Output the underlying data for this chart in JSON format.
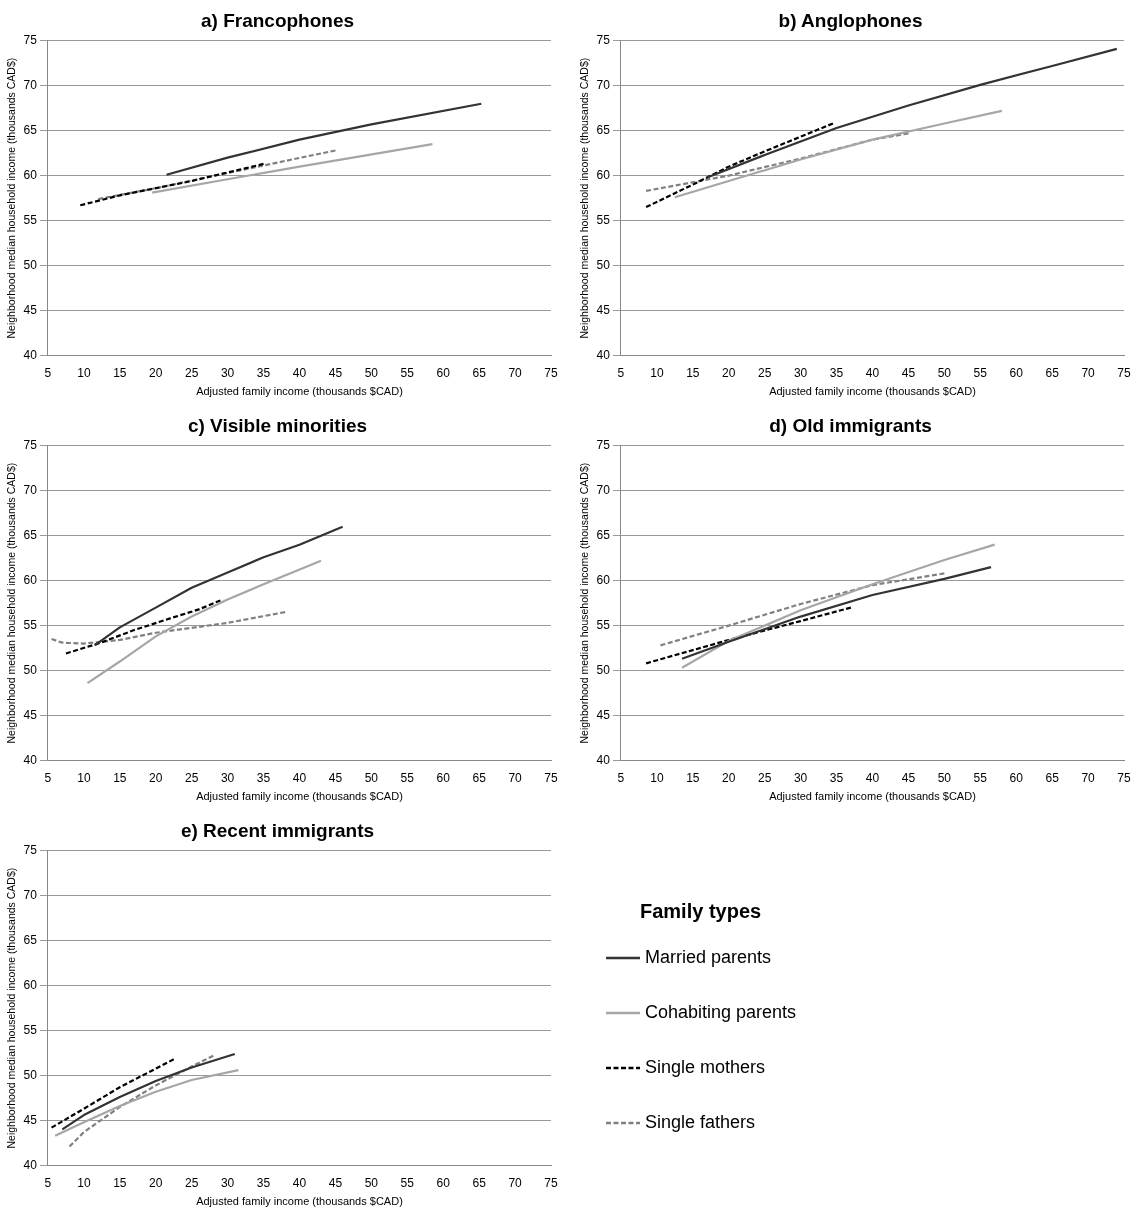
{
  "chart_data": [
    {
      "type": "line",
      "title": "a) Francophones",
      "xlabel": "Adjusted family income (thousands $CAD)",
      "ylabel": "Neighborhood median household income (thousands CAD$)",
      "xlim": [
        5,
        75
      ],
      "xticks": [
        5,
        10,
        15,
        20,
        25,
        30,
        35,
        40,
        45,
        50,
        55,
        60,
        65,
        70,
        75
      ],
      "ylim": [
        40,
        75
      ],
      "yticks": [
        40,
        45,
        50,
        55,
        60,
        65,
        70,
        75
      ],
      "grid": "y",
      "series": [
        {
          "color": "#333333",
          "line_style": "solid",
          "x": [
            21.5,
            30,
            40,
            50,
            65.3
          ],
          "values": [
            60.1,
            62.0,
            64.0,
            65.7,
            68.0
          ]
        },
        {
          "color": "#a6a6a6",
          "line_style": "solid",
          "x": [
            19.5,
            30,
            40,
            58.5
          ],
          "values": [
            58.1,
            59.6,
            61.0,
            63.5
          ]
        },
        {
          "color": "#000000",
          "line_style": "dashed",
          "x": [
            9.5,
            15,
            25,
            35
          ],
          "values": [
            56.7,
            57.8,
            59.4,
            61.3
          ]
        },
        {
          "color": "#808080",
          "line_style": "dashed",
          "x": [
            12,
            20,
            30,
            45
          ],
          "values": [
            57.4,
            58.6,
            60.3,
            62.8
          ]
        }
      ]
    },
    {
      "type": "line",
      "title": "b) Anglophones",
      "xlabel": "Adjusted family income (thousands $CAD)",
      "ylabel": "Neighborhood median household income (thousands CAD$)",
      "xlim": [
        5,
        75
      ],
      "xticks": [
        5,
        10,
        15,
        20,
        25,
        30,
        35,
        40,
        45,
        50,
        55,
        60,
        65,
        70,
        75
      ],
      "ylim": [
        40,
        75
      ],
      "yticks": [
        40,
        45,
        50,
        55,
        60,
        65,
        70,
        75
      ],
      "grid": "y",
      "series": [
        {
          "color": "#333333",
          "line_style": "solid",
          "x": [
            17,
            25,
            35,
            45,
            55,
            65,
            74
          ],
          "values": [
            59.8,
            62.3,
            65.3,
            67.8,
            70.1,
            72.2,
            74.1
          ]
        },
        {
          "color": "#a6a6a6",
          "line_style": "solid",
          "x": [
            12.5,
            20,
            30,
            40,
            50,
            58
          ],
          "values": [
            57.6,
            59.4,
            61.8,
            64.0,
            65.8,
            67.2
          ]
        },
        {
          "color": "#000000",
          "line_style": "dashed",
          "x": [
            8.5,
            15,
            20,
            25,
            34.5
          ],
          "values": [
            56.5,
            59.0,
            61.0,
            62.7,
            65.8
          ]
        },
        {
          "color": "#808080",
          "line_style": "dashed",
          "x": [
            8.5,
            20,
            30,
            40,
            45
          ],
          "values": [
            58.3,
            60.0,
            61.9,
            64.0,
            64.7
          ]
        }
      ]
    },
    {
      "type": "line",
      "title": "c) Visible minorities",
      "xlabel": "Adjusted family income (thousands $CAD)",
      "ylabel": "Neighborhood median household income (thousands CAD$)",
      "xlim": [
        5,
        75
      ],
      "xticks": [
        5,
        10,
        15,
        20,
        25,
        30,
        35,
        40,
        45,
        50,
        55,
        60,
        65,
        70,
        75
      ],
      "ylim": [
        40,
        75
      ],
      "yticks": [
        40,
        45,
        50,
        55,
        60,
        65,
        70,
        75
      ],
      "grid": "y",
      "series": [
        {
          "color": "#333333",
          "line_style": "solid",
          "x": [
            11.5,
            15,
            20,
            25,
            30,
            35,
            40,
            46
          ],
          "values": [
            52.8,
            54.8,
            57.0,
            59.2,
            60.9,
            62.6,
            64.0,
            66.0
          ]
        },
        {
          "color": "#a6a6a6",
          "line_style": "solid",
          "x": [
            10.5,
            15,
            20,
            25,
            30,
            35,
            43
          ],
          "values": [
            48.6,
            51.0,
            53.8,
            56.0,
            57.9,
            59.6,
            62.2
          ]
        },
        {
          "color": "#000000",
          "line_style": "dashed",
          "x": [
            7.5,
            12,
            17,
            22,
            26,
            29
          ],
          "values": [
            51.9,
            53.0,
            54.5,
            55.8,
            56.8,
            57.8
          ]
        },
        {
          "color": "#808080",
          "line_style": "dashed",
          "x": [
            5.5,
            7,
            10,
            15,
            20,
            30,
            38
          ],
          "values": [
            53.5,
            53.1,
            53.0,
            53.4,
            54.2,
            55.3,
            56.5
          ]
        }
      ]
    },
    {
      "type": "line",
      "title": "d) Old immigrants",
      "xlabel": "Adjusted family income (thousands $CAD)",
      "ylabel": "Neighborhood median household income (thousands CAD$)",
      "xlim": [
        5,
        75
      ],
      "xticks": [
        5,
        10,
        15,
        20,
        25,
        30,
        35,
        40,
        45,
        50,
        55,
        60,
        65,
        70,
        75
      ],
      "ylim": [
        40,
        75
      ],
      "yticks": [
        40,
        45,
        50,
        55,
        60,
        65,
        70,
        75
      ],
      "grid": "y",
      "series": [
        {
          "color": "#333333",
          "line_style": "solid",
          "x": [
            13.5,
            20,
            30,
            40,
            50,
            56.5
          ],
          "values": [
            51.3,
            53.2,
            56.0,
            58.4,
            60.2,
            61.5
          ]
        },
        {
          "color": "#a6a6a6",
          "line_style": "solid",
          "x": [
            13.5,
            20,
            30,
            40,
            50,
            57
          ],
          "values": [
            50.3,
            53.3,
            56.7,
            59.6,
            62.3,
            64.0
          ]
        },
        {
          "color": "#000000",
          "line_style": "dashed",
          "x": [
            8.5,
            20,
            30,
            37
          ],
          "values": [
            50.8,
            53.4,
            55.5,
            57.0
          ]
        },
        {
          "color": "#808080",
          "line_style": "dashed",
          "x": [
            10.5,
            20,
            30,
            40,
            50
          ],
          "values": [
            52.8,
            55.0,
            57.4,
            59.5,
            60.8
          ]
        }
      ]
    },
    {
      "type": "line",
      "title": "e) Recent immigrants",
      "xlabel": "Adjusted family income (thousands $CAD)",
      "ylabel": "Neighborhood median household income (thousands CAD$)",
      "xlim": [
        5,
        75
      ],
      "xticks": [
        5,
        10,
        15,
        20,
        25,
        30,
        35,
        40,
        45,
        50,
        55,
        60,
        65,
        70,
        75
      ],
      "ylim": [
        40,
        75
      ],
      "yticks": [
        40,
        45,
        50,
        55,
        60,
        65,
        70,
        75
      ],
      "grid": "y",
      "legend": "right",
      "legend_title": "Family types",
      "series": [
        {
          "name": "Married parents",
          "color": "#333333",
          "line_style": "solid",
          "x": [
            7,
            10,
            15,
            20,
            25,
            31
          ],
          "values": [
            44.0,
            45.6,
            47.6,
            49.4,
            50.9,
            52.4
          ]
        },
        {
          "name": "Cohabiting parents",
          "color": "#a6a6a6",
          "line_style": "solid",
          "x": [
            6,
            10,
            15,
            20,
            25,
            31.5
          ],
          "values": [
            43.3,
            44.8,
            46.6,
            48.2,
            49.5,
            50.6
          ]
        },
        {
          "name": "Single mothers",
          "color": "#000000",
          "line_style": "dashed",
          "x": [
            5.5,
            10,
            15,
            22.5
          ],
          "values": [
            44.2,
            46.3,
            48.7,
            51.8
          ]
        },
        {
          "name": "Single fathers",
          "color": "#808080",
          "line_style": "dashed",
          "x": [
            8,
            10,
            15,
            20,
            25,
            28
          ],
          "values": [
            42.1,
            43.7,
            46.5,
            48.9,
            51.0,
            52.2
          ]
        }
      ]
    }
  ]
}
